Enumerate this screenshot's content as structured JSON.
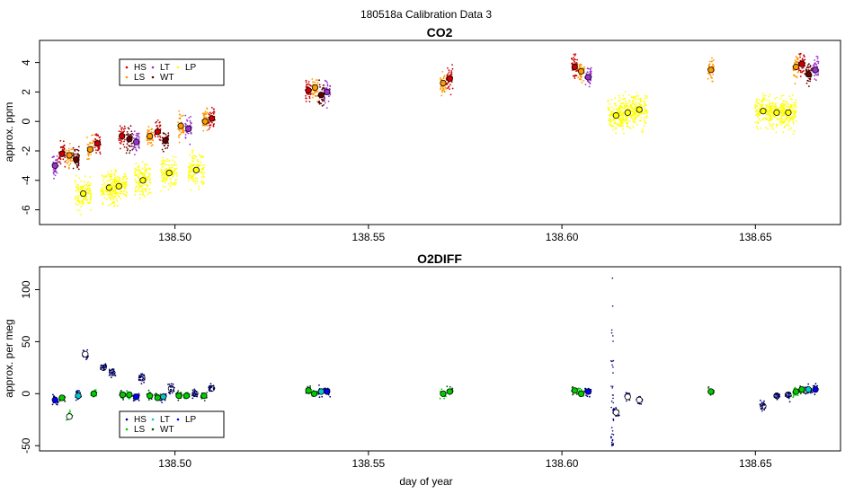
{
  "figure": {
    "title": "180518a   Calibration Data 3",
    "xlabel": "day of year",
    "xlim": [
      138.465,
      138.672
    ],
    "xticks": [
      138.5,
      138.55,
      138.6,
      138.65
    ],
    "xtick_labels": [
      "138.50",
      "138.55",
      "138.60",
      "138.65"
    ]
  },
  "colors": {
    "HS": "#cc0000",
    "LS": "#ff9900",
    "LT": "#9933cc",
    "WT": "#660000",
    "LP": "#ffff00",
    "o2_dark": "#000080",
    "o2_green": "#00cc00",
    "o2_cyan": "#00cccc",
    "o2_darkgreen": "#005500",
    "o2_blue": "#0000ff"
  },
  "chart_data": [
    {
      "type": "scatter",
      "title": "CO2",
      "ylabel": "approx. ppm",
      "ylim": [
        -7.0,
        5.5
      ],
      "yticks": [
        -6,
        -4,
        -2,
        0,
        2,
        4
      ],
      "ytick_labels": [
        "-6",
        "-4",
        "-2",
        "0",
        "2",
        "4"
      ],
      "legend": {
        "placement": "top-left",
        "entries": [
          {
            "key": "HS",
            "label": "HS"
          },
          {
            "key": "LS",
            "label": "LS"
          },
          {
            "key": "LT",
            "label": "LT"
          },
          {
            "key": "WT",
            "label": "WT"
          },
          {
            "key": "LP",
            "label": "LP"
          }
        ]
      },
      "clusters": [
        {
          "x": 138.469,
          "y": -3.0,
          "c": "LT"
        },
        {
          "x": 138.4708,
          "y": -2.2,
          "c": "HS"
        },
        {
          "x": 138.4727,
          "y": -2.3,
          "c": "LS"
        },
        {
          "x": 138.4745,
          "y": -2.6,
          "c": "WT"
        },
        {
          "x": 138.4763,
          "y": -4.9,
          "c": "LP"
        },
        {
          "x": 138.4781,
          "y": -1.9,
          "c": "LS"
        },
        {
          "x": 138.48,
          "y": -1.5,
          "c": "HS"
        },
        {
          "x": 138.483,
          "y": -4.5,
          "c": "LP"
        },
        {
          "x": 138.4855,
          "y": -4.4,
          "c": "LP"
        },
        {
          "x": 138.4863,
          "y": -1.0,
          "c": "HS"
        },
        {
          "x": 138.4882,
          "y": -1.2,
          "c": "WT"
        },
        {
          "x": 138.49,
          "y": -1.4,
          "c": "LT"
        },
        {
          "x": 138.4917,
          "y": -4.0,
          "c": "LP"
        },
        {
          "x": 138.4935,
          "y": -1.0,
          "c": "LS"
        },
        {
          "x": 138.4955,
          "y": -0.7,
          "c": "HS"
        },
        {
          "x": 138.4975,
          "y": -1.3,
          "c": "WT"
        },
        {
          "x": 138.4985,
          "y": -3.5,
          "c": "LP"
        },
        {
          "x": 138.5015,
          "y": -0.3,
          "c": "LS"
        },
        {
          "x": 138.5035,
          "y": -0.5,
          "c": "LT"
        },
        {
          "x": 138.5055,
          "y": -3.3,
          "c": "LP"
        },
        {
          "x": 138.5078,
          "y": 0.0,
          "c": "LS"
        },
        {
          "x": 138.5095,
          "y": 0.2,
          "c": "HS"
        },
        {
          "x": 138.5345,
          "y": 2.1,
          "c": "HS"
        },
        {
          "x": 138.5362,
          "y": 2.3,
          "c": "LS"
        },
        {
          "x": 138.5378,
          "y": 1.8,
          "c": "WT"
        },
        {
          "x": 138.5393,
          "y": 2.0,
          "c": "LT"
        },
        {
          "x": 138.5693,
          "y": 2.6,
          "c": "LS"
        },
        {
          "x": 138.571,
          "y": 2.9,
          "c": "HS"
        },
        {
          "x": 138.6033,
          "y": 3.7,
          "c": "HS"
        },
        {
          "x": 138.605,
          "y": 3.4,
          "c": "LS"
        },
        {
          "x": 138.6068,
          "y": 3.0,
          "c": "LT"
        },
        {
          "x": 138.614,
          "y": 0.4,
          "c": "LP"
        },
        {
          "x": 138.617,
          "y": 0.6,
          "c": "LP"
        },
        {
          "x": 138.62,
          "y": 0.8,
          "c": "LP"
        },
        {
          "x": 138.6385,
          "y": 3.5,
          "c": "LS"
        },
        {
          "x": 138.652,
          "y": 0.7,
          "c": "LP"
        },
        {
          "x": 138.6555,
          "y": 0.6,
          "c": "LP"
        },
        {
          "x": 138.6585,
          "y": 0.6,
          "c": "LP"
        },
        {
          "x": 138.6605,
          "y": 3.7,
          "c": "LS"
        },
        {
          "x": 138.662,
          "y": 3.9,
          "c": "HS"
        },
        {
          "x": 138.6637,
          "y": 3.2,
          "c": "WT"
        },
        {
          "x": 138.6655,
          "y": 3.5,
          "c": "LT"
        }
      ]
    },
    {
      "type": "scatter",
      "title": "O2DIFF",
      "ylabel": "approx. per meg",
      "ylim": [
        -55,
        122
      ],
      "yticks": [
        -50,
        0,
        50,
        100
      ],
      "ytick_labels": [
        "-50",
        "0",
        "50",
        "100"
      ],
      "legend": {
        "placement": "bottom-left",
        "entries": [
          {
            "key": "HS",
            "label": "HS"
          },
          {
            "key": "LS",
            "label": "LS"
          },
          {
            "key": "LT",
            "label": "LT"
          },
          {
            "key": "WT",
            "label": "WT"
          },
          {
            "key": "LP",
            "label": "LP"
          }
        ]
      },
      "clusters": [
        {
          "x": 138.469,
          "y": -6,
          "c": "o2_dark",
          "fill": "o2_blue"
        },
        {
          "x": 138.4708,
          "y": -4,
          "c": "o2_darkgreen",
          "fill": "o2_green"
        },
        {
          "x": 138.4727,
          "y": -22,
          "c": "o2_green",
          "fill": "#ffffff"
        },
        {
          "x": 138.475,
          "y": -2,
          "c": "o2_dark",
          "fill": "o2_cyan"
        },
        {
          "x": 138.4768,
          "y": 38,
          "c": "o2_dark",
          "fill": "#ffffff"
        },
        {
          "x": 138.479,
          "y": 0,
          "c": "o2_green",
          "fill": "o2_green"
        },
        {
          "x": 138.4815,
          "y": 25,
          "c": "o2_dark",
          "fill": "none"
        },
        {
          "x": 138.4838,
          "y": 20,
          "c": "o2_dark",
          "fill": "none"
        },
        {
          "x": 138.4865,
          "y": -1,
          "c": "o2_darkgreen",
          "fill": "o2_green"
        },
        {
          "x": 138.4882,
          "y": -1,
          "c": "o2_green",
          "fill": "o2_green"
        },
        {
          "x": 138.49,
          "y": -3,
          "c": "o2_dark",
          "fill": "o2_blue"
        },
        {
          "x": 138.4915,
          "y": 15,
          "c": "o2_dark",
          "fill": "none"
        },
        {
          "x": 138.4935,
          "y": -2,
          "c": "o2_darkgreen",
          "fill": "o2_green"
        },
        {
          "x": 138.4955,
          "y": -4,
          "c": "o2_darkgreen",
          "fill": "o2_green"
        },
        {
          "x": 138.497,
          "y": -3,
          "c": "o2_dark",
          "fill": "o2_cyan"
        },
        {
          "x": 138.499,
          "y": 5,
          "c": "o2_dark",
          "fill": "none"
        },
        {
          "x": 138.501,
          "y": -2,
          "c": "o2_darkgreen",
          "fill": "o2_green"
        },
        {
          "x": 138.503,
          "y": -2,
          "c": "o2_green",
          "fill": "o2_green"
        },
        {
          "x": 138.5052,
          "y": 0,
          "c": "o2_dark",
          "fill": "none"
        },
        {
          "x": 138.5075,
          "y": -2,
          "c": "o2_darkgreen",
          "fill": "o2_green"
        },
        {
          "x": 138.5095,
          "y": 5,
          "c": "o2_dark",
          "fill": "none"
        },
        {
          "x": 138.5345,
          "y": 3,
          "c": "o2_darkgreen",
          "fill": "o2_green"
        },
        {
          "x": 138.536,
          "y": 0,
          "c": "o2_green",
          "fill": "o2_green"
        },
        {
          "x": 138.5378,
          "y": 2,
          "c": "o2_dark",
          "fill": "o2_cyan"
        },
        {
          "x": 138.5393,
          "y": 2,
          "c": "o2_dark",
          "fill": "o2_blue"
        },
        {
          "x": 138.5693,
          "y": 0,
          "c": "o2_green",
          "fill": "o2_green"
        },
        {
          "x": 138.571,
          "y": 2,
          "c": "o2_darkgreen",
          "fill": "o2_green"
        },
        {
          "x": 138.6033,
          "y": 3,
          "c": "o2_darkgreen",
          "fill": "o2_green"
        },
        {
          "x": 138.605,
          "y": 0,
          "c": "o2_green",
          "fill": "o2_green"
        },
        {
          "x": 138.6068,
          "y": 2,
          "c": "o2_dark",
          "fill": "o2_blue"
        },
        {
          "x": 138.614,
          "y": -18,
          "c": "o2_dark",
          "fill": "#ffffff"
        },
        {
          "x": 138.617,
          "y": -3,
          "c": "o2_dark",
          "fill": "#ffffff"
        },
        {
          "x": 138.62,
          "y": -6,
          "c": "o2_dark",
          "fill": "#ffffff"
        },
        {
          "x": 138.6385,
          "y": 2,
          "c": "o2_darkgreen",
          "fill": "o2_green"
        },
        {
          "x": 138.652,
          "y": -12,
          "c": "o2_dark",
          "fill": "none"
        },
        {
          "x": 138.6555,
          "y": -2,
          "c": "o2_dark",
          "fill": "none"
        },
        {
          "x": 138.6585,
          "y": -1,
          "c": "o2_dark",
          "fill": "none"
        },
        {
          "x": 138.6605,
          "y": 2,
          "c": "o2_green",
          "fill": "o2_green"
        },
        {
          "x": 138.662,
          "y": 4,
          "c": "o2_darkgreen",
          "fill": "o2_green"
        },
        {
          "x": 138.6637,
          "y": 4,
          "c": "o2_dark",
          "fill": "o2_cyan"
        },
        {
          "x": 138.6655,
          "y": 4,
          "c": "o2_dark",
          "fill": "o2_blue"
        }
      ],
      "spike": {
        "x": 138.613,
        "ymin": -50,
        "ymax": 117
      }
    }
  ]
}
